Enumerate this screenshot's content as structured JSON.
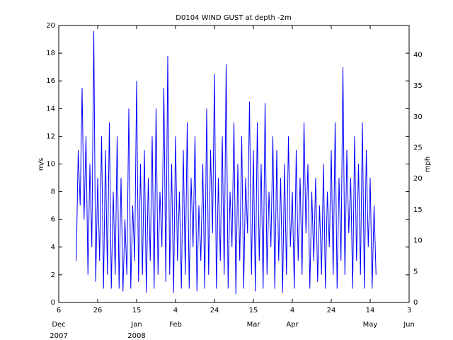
{
  "chart_data": {
    "type": "line",
    "title": "D0104 WIND GUST at depth -2m",
    "ylabel": "m/s",
    "y2label": "mph",
    "x": [
      "2007-12-15",
      "2007-12-16",
      "2007-12-17",
      "2007-12-18",
      "2007-12-19",
      "2007-12-20",
      "2007-12-21",
      "2007-12-22",
      "2007-12-23",
      "2007-12-24",
      "2007-12-25",
      "2007-12-26",
      "2007-12-27",
      "2007-12-28",
      "2007-12-29",
      "2007-12-30",
      "2007-12-31",
      "2008-01-01",
      "2008-01-02",
      "2008-01-03",
      "2008-01-04",
      "2008-01-05",
      "2008-01-06",
      "2008-01-07",
      "2008-01-08",
      "2008-01-09",
      "2008-01-10",
      "2008-01-11",
      "2008-01-12",
      "2008-01-13",
      "2008-01-14",
      "2008-01-15",
      "2008-01-16",
      "2008-01-17",
      "2008-01-18",
      "2008-01-19",
      "2008-01-20",
      "2008-01-21",
      "2008-01-22",
      "2008-01-23",
      "2008-01-24",
      "2008-01-25",
      "2008-01-26",
      "2008-01-27",
      "2008-01-28",
      "2008-01-29",
      "2008-01-30",
      "2008-01-31",
      "2008-02-01",
      "2008-02-02",
      "2008-02-03",
      "2008-02-04",
      "2008-02-05",
      "2008-02-06",
      "2008-02-07",
      "2008-02-08",
      "2008-02-09",
      "2008-02-10",
      "2008-02-11",
      "2008-02-12",
      "2008-02-13",
      "2008-02-14",
      "2008-02-15",
      "2008-02-16",
      "2008-02-17",
      "2008-02-18",
      "2008-02-19",
      "2008-02-20",
      "2008-02-21",
      "2008-02-22",
      "2008-02-23",
      "2008-02-24",
      "2008-02-25",
      "2008-02-26",
      "2008-02-27",
      "2008-02-28",
      "2008-02-29",
      "2008-03-01",
      "2008-03-02",
      "2008-03-03",
      "2008-03-04",
      "2008-03-05",
      "2008-03-06",
      "2008-03-07",
      "2008-03-08",
      "2008-03-09",
      "2008-03-10",
      "2008-03-11",
      "2008-03-12",
      "2008-03-13",
      "2008-03-14",
      "2008-03-15",
      "2008-03-16",
      "2008-03-17",
      "2008-03-18",
      "2008-03-19",
      "2008-03-20",
      "2008-03-21",
      "2008-03-22",
      "2008-03-23",
      "2008-03-24",
      "2008-03-25",
      "2008-03-26",
      "2008-03-27",
      "2008-03-28",
      "2008-03-29",
      "2008-03-30",
      "2008-03-31",
      "2008-04-01",
      "2008-04-02",
      "2008-04-03",
      "2008-04-04",
      "2008-04-05",
      "2008-04-06",
      "2008-04-07",
      "2008-04-08",
      "2008-04-09",
      "2008-04-10",
      "2008-04-11",
      "2008-04-12",
      "2008-04-13",
      "2008-04-14",
      "2008-04-15",
      "2008-04-16",
      "2008-04-17",
      "2008-04-18",
      "2008-04-19",
      "2008-04-20",
      "2008-04-21",
      "2008-04-22",
      "2008-04-23",
      "2008-04-24",
      "2008-04-25",
      "2008-04-26",
      "2008-04-27",
      "2008-04-28",
      "2008-04-29",
      "2008-04-30",
      "2008-05-01",
      "2008-05-02",
      "2008-05-03",
      "2008-05-04",
      "2008-05-05",
      "2008-05-06",
      "2008-05-07",
      "2008-05-08",
      "2008-05-09",
      "2008-05-10",
      "2008-05-11",
      "2008-05-12",
      "2008-05-13",
      "2008-05-14",
      "2008-05-15",
      "2008-05-16",
      "2008-05-17"
    ],
    "series": [
      {
        "color": "#0000ff",
        "values": [
          3,
          11,
          7,
          15.5,
          6,
          12,
          2,
          10,
          4,
          19.6,
          1.5,
          9,
          3,
          12,
          1,
          11,
          2,
          13,
          1,
          8,
          2,
          12,
          1,
          9,
          0.8,
          6,
          2,
          14,
          1,
          7,
          3,
          16,
          1.5,
          10,
          2,
          11,
          0.7,
          9,
          3,
          12,
          1,
          14,
          2,
          8,
          4,
          15.5,
          1.5,
          17.8,
          2,
          10,
          0.7,
          12,
          3,
          8,
          1,
          11,
          2,
          13,
          1,
          9,
          4,
          12,
          0.8,
          7,
          3,
          10,
          1,
          14,
          2,
          11,
          5,
          16.5,
          1,
          9,
          3,
          12,
          2,
          17.2,
          1,
          8,
          4,
          13,
          0.6,
          10,
          3,
          12,
          1,
          9,
          5,
          14.5,
          2,
          11,
          0.8,
          13,
          3,
          10,
          1,
          14.4,
          2,
          8,
          4,
          12,
          1,
          11,
          3,
          9,
          0.7,
          10,
          2,
          12,
          4,
          8,
          1,
          11,
          3,
          9,
          2,
          13,
          5,
          10,
          1,
          8,
          3,
          9,
          1.5,
          7,
          2,
          10,
          1,
          8,
          4,
          11,
          2,
          13,
          1,
          9,
          3,
          17,
          2,
          11,
          5,
          9,
          1,
          12,
          3,
          10,
          2,
          13,
          1,
          11,
          4,
          9,
          1,
          7,
          2
        ]
      }
    ],
    "xlim": [
      "2007-12-06",
      "2008-06-03"
    ],
    "xticks": [
      {
        "value": "2007-12-06",
        "label": "6"
      },
      {
        "value": "2007-12-26",
        "label": "26"
      },
      {
        "value": "2008-01-15",
        "label": "15"
      },
      {
        "value": "2008-02-04",
        "label": "4"
      },
      {
        "value": "2008-02-24",
        "label": "24"
      },
      {
        "value": "2008-03-15",
        "label": "15"
      },
      {
        "value": "2008-04-04",
        "label": "4"
      },
      {
        "value": "2008-04-24",
        "label": "24"
      },
      {
        "value": "2008-05-14",
        "label": "14"
      },
      {
        "value": "2008-06-03",
        "label": "3"
      }
    ],
    "x_month_labels": [
      {
        "value": "2007-12-06",
        "label": "Dec"
      },
      {
        "value": "2008-01-15",
        "label": "Jan"
      },
      {
        "value": "2008-02-04",
        "label": "Feb"
      },
      {
        "value": "2008-03-15",
        "label": "Mar"
      },
      {
        "value": "2008-04-04",
        "label": "Apr"
      },
      {
        "value": "2008-05-14",
        "label": "May"
      },
      {
        "value": "2008-06-03",
        "label": "Jun"
      }
    ],
    "x_year_labels": [
      {
        "value": "2007-12-06",
        "label": "2007"
      },
      {
        "value": "2008-01-15",
        "label": "2008"
      }
    ],
    "ylim": [
      0,
      20
    ],
    "yticks": [
      0,
      2,
      4,
      6,
      8,
      10,
      12,
      14,
      16,
      18,
      20
    ],
    "y2lim": [
      0,
      44.74
    ],
    "y2ticks": [
      0,
      5,
      10,
      15,
      20,
      25,
      30,
      35,
      40
    ]
  }
}
